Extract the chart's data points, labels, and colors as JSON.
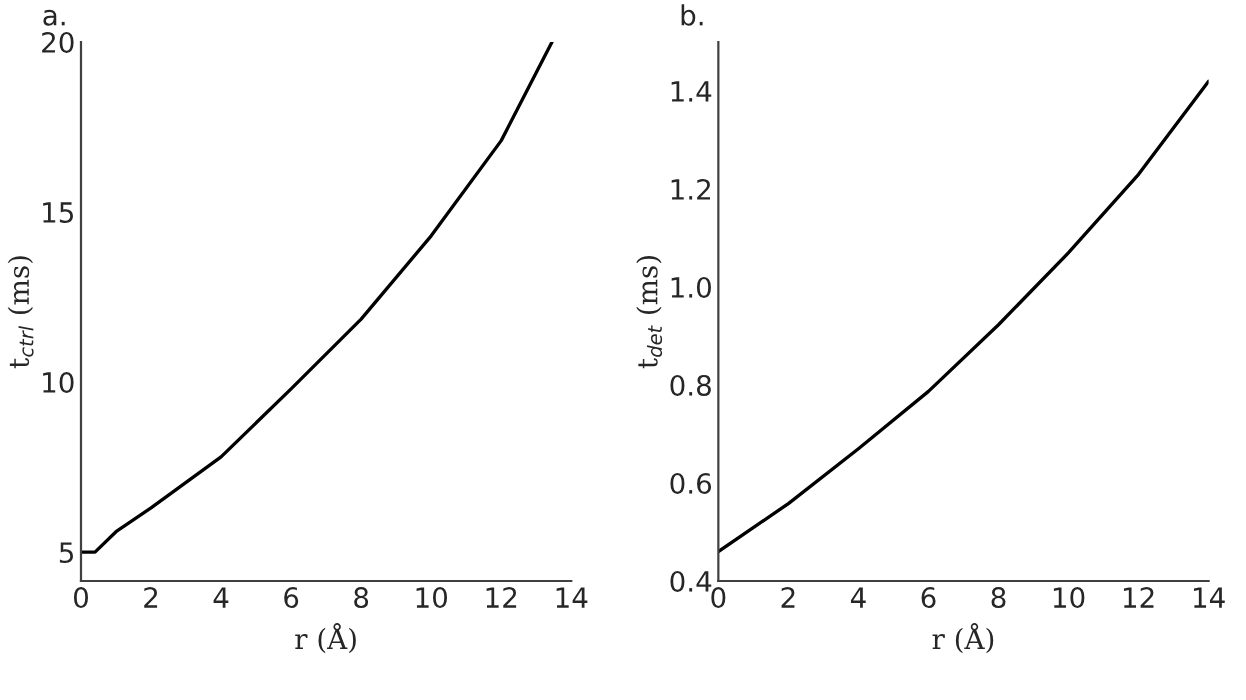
{
  "chart_data": [
    {
      "type": "line",
      "title": "a.",
      "xlabel": "r (Å)",
      "ylabel": "t$_{ctrl}$ (ms)",
      "xlim": [
        0,
        14
      ],
      "ylim": [
        4.15,
        20
      ],
      "xticks": [
        0,
        2,
        4,
        6,
        8,
        10,
        12,
        14
      ],
      "yticks": [
        5,
        10,
        15,
        20
      ],
      "grid": false,
      "x": [
        0,
        0.4,
        1,
        2,
        4,
        6,
        8,
        10,
        12,
        13.45
      ],
      "series": [
        {
          "color": "#000000",
          "values": [
            5.0,
            5.0,
            5.6,
            6.3,
            7.8,
            9.8,
            11.85,
            14.3,
            17.1,
            20.0
          ]
        }
      ]
    },
    {
      "type": "line",
      "title": "b.",
      "xlabel": "r (Å)",
      "ylabel": "t$_{det}$ (ms)",
      "xlim": [
        0,
        14
      ],
      "ylim": [
        0.4,
        1.5
      ],
      "xticks": [
        0,
        2,
        4,
        6,
        8,
        10,
        12,
        14
      ],
      "yticks": [
        {
          "value": 0.4,
          "label": "0.4"
        },
        {
          "value": 0.6,
          "label": "0.6"
        },
        {
          "value": 0.8,
          "label": "0.8"
        },
        {
          "value": 1.0,
          "label": "1.0"
        },
        {
          "value": 1.2,
          "label": "1.2"
        },
        {
          "value": 1.4,
          "label": "1.4"
        }
      ],
      "grid": false,
      "x": [
        0,
        2,
        4,
        6,
        8,
        10,
        12,
        14
      ],
      "series": [
        {
          "color": "#000000",
          "values": [
            0.46,
            0.558,
            0.67,
            0.787,
            0.923,
            1.07,
            1.23,
            1.42
          ]
        }
      ]
    }
  ]
}
